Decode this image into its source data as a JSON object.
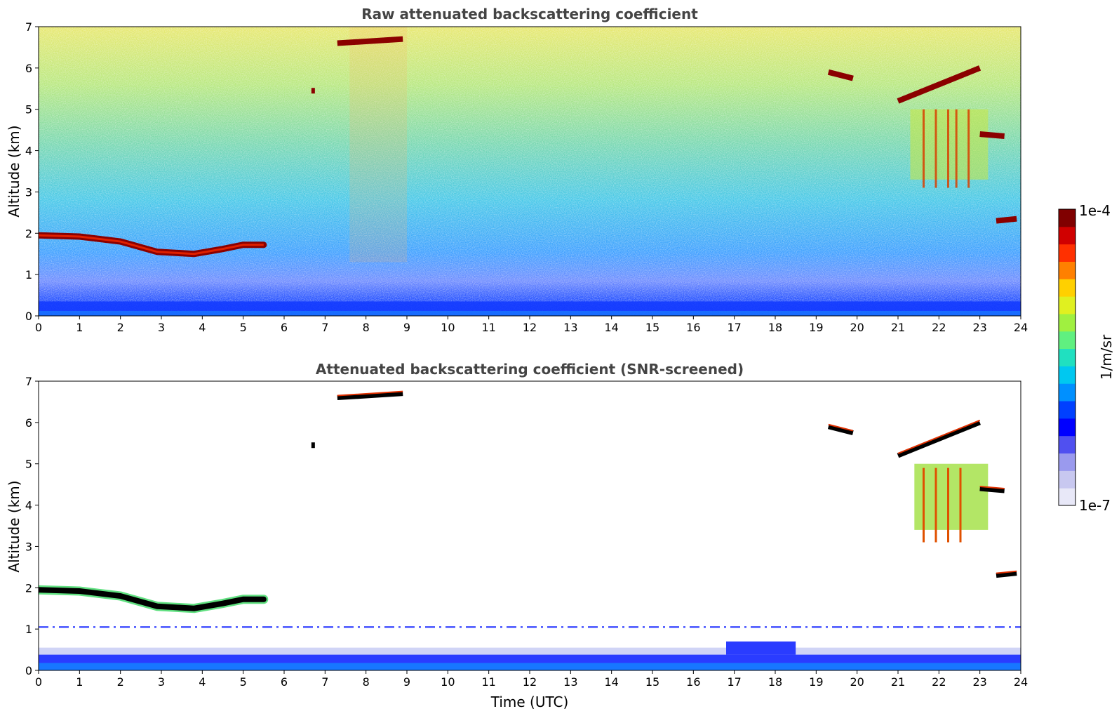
{
  "chart_data": [
    {
      "type": "heatmap",
      "title": "Raw attenuated backscattering coefficient",
      "xlabel": "",
      "ylabel": "Altitude (km)",
      "xlim": [
        0,
        24
      ],
      "ylim": [
        0,
        7
      ],
      "x_ticks": [
        "0",
        "1",
        "2",
        "3",
        "4",
        "5",
        "6",
        "7",
        "8",
        "9",
        "10",
        "11",
        "12",
        "13",
        "14",
        "15",
        "16",
        "17",
        "18",
        "19",
        "20",
        "21",
        "22",
        "23",
        "24"
      ],
      "y_ticks": [
        "0",
        "1",
        "2",
        "3",
        "4",
        "5",
        "6",
        "7"
      ],
      "background": "noisy field, blue near ground (0–0.5 km) increasing toward yellow/green aloft",
      "features": [
        {
          "name": "boundary layer top",
          "x": [
            0,
            1,
            2,
            2.9,
            3.8,
            4.5,
            5.0,
            5.5
          ],
          "y": [
            1.95,
            1.92,
            1.8,
            1.55,
            1.5,
            1.62,
            1.72,
            1.72
          ],
          "level": "high"
        },
        {
          "name": "mid-level cloud",
          "x": [
            7.3,
            8.9
          ],
          "y": [
            6.6,
            6.7
          ],
          "level": "high"
        },
        {
          "name": "small cloud",
          "x": [
            6.7
          ],
          "y": [
            5.45
          ],
          "level": "high"
        },
        {
          "name": "cloud",
          "x": [
            19.3,
            19.9
          ],
          "y": [
            5.9,
            5.75
          ],
          "level": "high"
        },
        {
          "name": "cloud with virga",
          "x": [
            21.0,
            23.0
          ],
          "y": [
            5.2,
            6.0
          ],
          "virga_bottom": 3.1,
          "level": "high"
        },
        {
          "name": "cloud",
          "x": [
            23.4,
            23.9
          ],
          "y": [
            2.3,
            2.35
          ],
          "level": "high"
        },
        {
          "name": "cloud",
          "x": [
            23.0,
            23.6
          ],
          "y": [
            4.4,
            4.35
          ],
          "level": "high"
        }
      ]
    },
    {
      "type": "heatmap",
      "title": "Attenuated backscattering coefficient (SNR-screened)",
      "xlabel": "Time (UTC)",
      "ylabel": "Altitude (km)",
      "xlim": [
        0,
        24
      ],
      "ylim": [
        0,
        7
      ],
      "x_ticks": [
        "0",
        "1",
        "2",
        "3",
        "4",
        "5",
        "6",
        "7",
        "8",
        "9",
        "10",
        "11",
        "12",
        "13",
        "14",
        "15",
        "16",
        "17",
        "18",
        "19",
        "20",
        "21",
        "22",
        "23",
        "24"
      ],
      "y_ticks": [
        "0",
        "1",
        "2",
        "3",
        "4",
        "5",
        "6",
        "7"
      ],
      "background": "white above ~0.6 km after screening; blue layer 0–0.5 km; dashed artifact line at ~1.05 km"
    }
  ],
  "colorbar": {
    "label": "1/m/sr",
    "min_label": "1e-7",
    "max_label": "1e-4",
    "scale": "log",
    "colors": [
      "#e8e8f8",
      "#c8c8f0",
      "#9a9aee",
      "#5050f0",
      "#0000ff",
      "#0040ff",
      "#0090ff",
      "#00c8f0",
      "#20e0c0",
      "#60f080",
      "#a0f040",
      "#e0f020",
      "#ffd000",
      "#ff8000",
      "#ff3000",
      "#d00000",
      "#800000"
    ]
  }
}
